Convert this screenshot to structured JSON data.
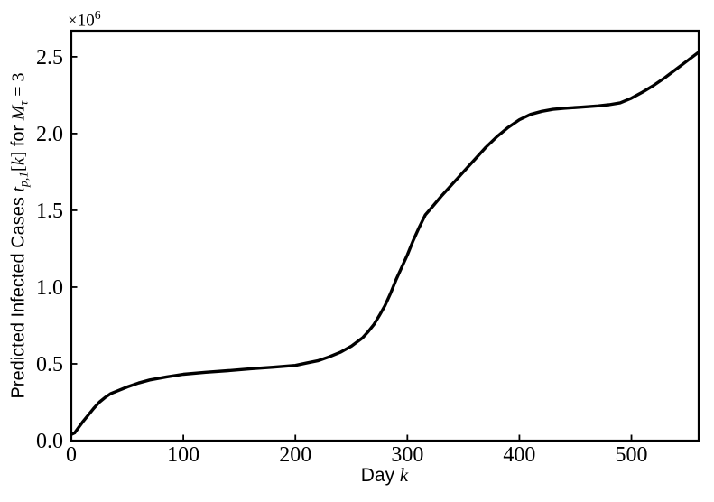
{
  "chart_data": {
    "type": "line",
    "title": "",
    "xlabel": "Day k",
    "ylabel": "Predicted Infected Cases t_{p,1}[k] for M_tau = 3",
    "x": [
      0,
      3,
      6,
      10,
      15,
      20,
      25,
      30,
      35,
      40,
      50,
      60,
      70,
      85,
      100,
      120,
      140,
      160,
      180,
      200,
      210,
      220,
      230,
      240,
      250,
      260,
      265,
      270,
      275,
      280,
      285,
      290,
      295,
      300,
      305,
      310,
      316,
      322,
      330,
      340,
      350,
      360,
      370,
      380,
      390,
      400,
      410,
      420,
      430,
      440,
      455,
      470,
      480,
      490,
      500,
      510,
      520,
      530,
      540,
      550,
      560
    ],
    "y_millions": [
      0.04,
      0.05,
      0.08,
      0.12,
      0.165,
      0.21,
      0.25,
      0.28,
      0.305,
      0.32,
      0.35,
      0.375,
      0.395,
      0.415,
      0.432,
      0.445,
      0.456,
      0.468,
      0.478,
      0.49,
      0.505,
      0.52,
      0.545,
      0.575,
      0.615,
      0.67,
      0.71,
      0.755,
      0.815,
      0.88,
      0.96,
      1.05,
      1.13,
      1.21,
      1.3,
      1.38,
      1.47,
      1.52,
      1.59,
      1.67,
      1.75,
      1.83,
      1.91,
      1.98,
      2.04,
      2.09,
      2.125,
      2.145,
      2.158,
      2.165,
      2.172,
      2.18,
      2.188,
      2.2,
      2.23,
      2.27,
      2.315,
      2.365,
      2.42,
      2.475,
      2.53
    ],
    "y_unit_scale": "1e6",
    "xlim": [
      0,
      560
    ],
    "ylim_millions": [
      0,
      2.67
    ],
    "xticks": [
      0,
      100,
      200,
      300,
      400,
      500
    ],
    "xtick_labels": [
      "0",
      "100",
      "200",
      "300",
      "400",
      "500"
    ],
    "yticks_millions": [
      0.0,
      0.5,
      1.0,
      1.5,
      2.0,
      2.5
    ],
    "ytick_labels": [
      "0.0",
      "0.5",
      "1.0",
      "1.5",
      "2.0",
      "2.5"
    ],
    "grid": false,
    "legend": null,
    "tick_direction": "in",
    "line_color": "#000000",
    "background_color": "#ffffff"
  },
  "labels": {
    "y_offset_base": "×10",
    "y_offset_exp": "6",
    "xlabel_text": "Day ",
    "xlabel_math": "k",
    "ylabel_text1": "Predicted Infected Cases ",
    "ylabel_t": "t",
    "ylabel_t_sub": "p,1",
    "ylabel_lbracket": "[",
    "ylabel_k": "k",
    "ylabel_rbracket": "]",
    "ylabel_for": " for ",
    "ylabel_M": "M",
    "ylabel_M_sub": "τ",
    "ylabel_eq3": " = 3"
  }
}
